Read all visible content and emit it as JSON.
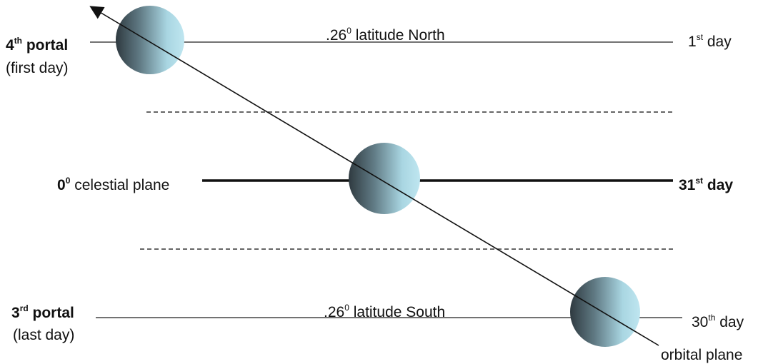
{
  "north": {
    "portal_num": "4",
    "portal_sup": "th",
    "portal_word": "portal",
    "portal_sub": "(first day)",
    "latitude_num": ".26",
    "latitude_sup": "0",
    "latitude_text": "latitude North",
    "day_num": "1",
    "day_sup": "st",
    "day_word": "day"
  },
  "center": {
    "plane_num": "0",
    "plane_sup": "0",
    "plane_text": "celestial plane",
    "day_num": "31",
    "day_sup": "st",
    "day_word": "day"
  },
  "south": {
    "portal_num": "3",
    "portal_sup": "rd",
    "portal_word": "portal",
    "portal_sub": "(last day)",
    "latitude_num": ".26",
    "latitude_sup": "0",
    "latitude_text": "latitude South",
    "day_num": "30",
    "day_sup": "th",
    "day_word": "day"
  },
  "orbit": {
    "label": "orbital plane"
  },
  "colors": {
    "line": "#333333",
    "sphere_dark": "#2f3a40",
    "sphere_light": "#bfe6f0"
  }
}
